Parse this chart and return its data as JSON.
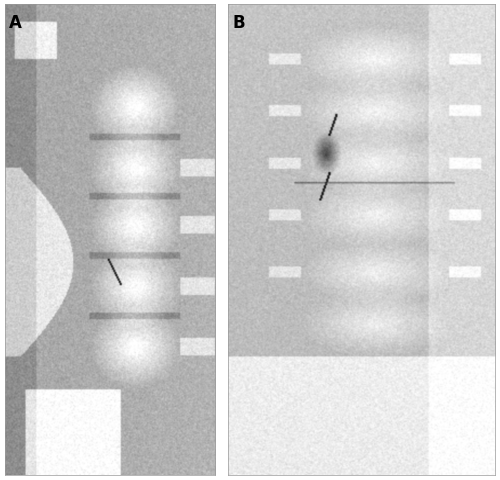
{
  "figure_width": 5.0,
  "figure_height": 4.81,
  "dpi": 100,
  "background_color": "#ffffff",
  "label_A": "A",
  "label_B": "B",
  "label_fontsize": 12,
  "label_fontweight": "bold",
  "label_color": "#000000"
}
